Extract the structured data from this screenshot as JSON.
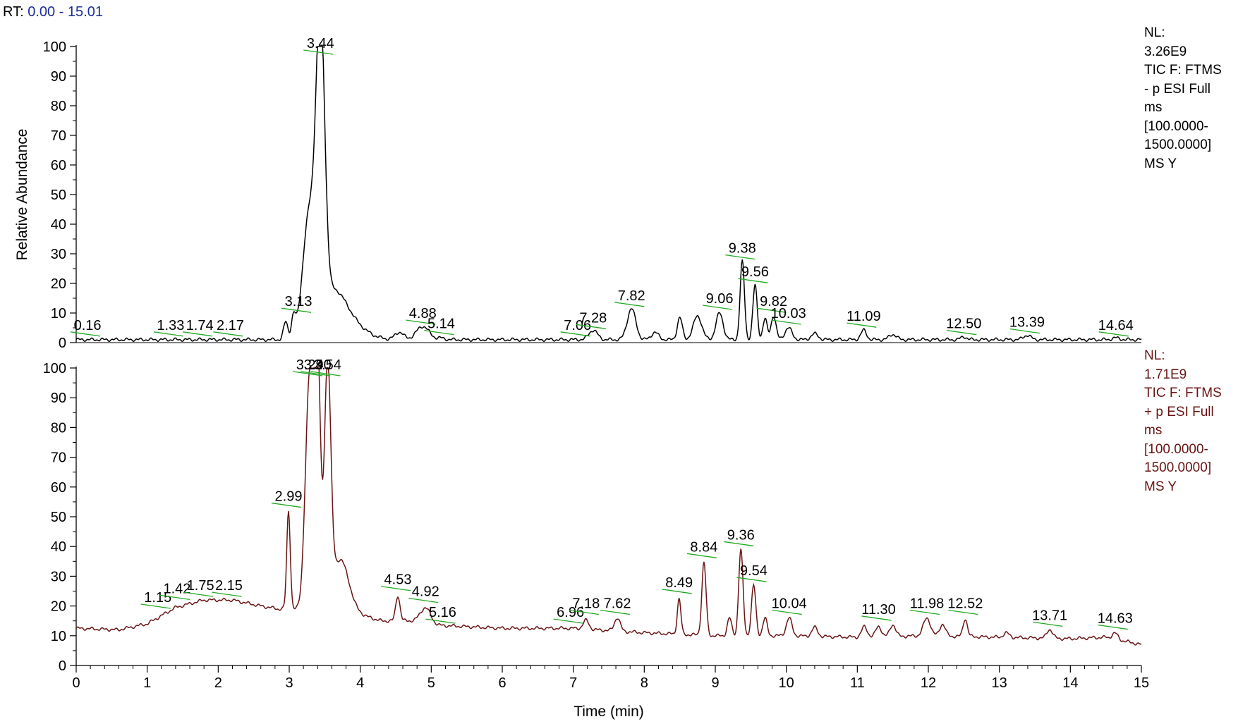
{
  "header": {
    "rt_label": "RT:",
    "rt_range": "0.00 - 15.01",
    "rt_color": "#1a2d9a"
  },
  "colors": {
    "neg_trace": "#000000",
    "pos_trace": "#6a1414",
    "pos_info_text": "#6a1414",
    "peak_marker": "#22aa22",
    "axis": "#000000"
  },
  "panels": [
    {
      "nl_label": "NL:",
      "nl_value": "3.26E9",
      "scan_filter": [
        "TIC F: FTMS",
        "- p ESI Full",
        "ms",
        "[100.0000-",
        "1500.0000]",
        "MS Y"
      ]
    },
    {
      "nl_label": "NL:",
      "nl_value": "1.71E9",
      "scan_filter": [
        "TIC F: FTMS",
        "+ p ESI Full",
        "ms",
        "[100.0000-",
        "1500.0000]",
        "MS Y"
      ]
    }
  ],
  "chart_data": [
    {
      "type": "line",
      "title": "",
      "xlabel": "Time (min)",
      "ylabel": "Relative Abundance",
      "xlim": [
        0,
        15
      ],
      "ylim": [
        0,
        100
      ],
      "x_ticks": [
        0,
        1,
        2,
        3,
        4,
        5,
        6,
        7,
        8,
        9,
        10,
        11,
        12,
        13,
        14,
        15
      ],
      "y_ticks": [
        0,
        10,
        20,
        30,
        40,
        50,
        60,
        70,
        80,
        90,
        100
      ],
      "grid": false,
      "peak_labels": [
        {
          "rt": 0.16,
          "label": "0.16",
          "y": 1
        },
        {
          "rt": 1.33,
          "label": "1.33",
          "y": 1
        },
        {
          "rt": 1.74,
          "label": "1.74",
          "y": 1
        },
        {
          "rt": 2.17,
          "label": "2.17",
          "y": 1
        },
        {
          "rt": 3.13,
          "label": "3.13",
          "y": 9
        },
        {
          "rt": 3.44,
          "label": "3.44",
          "y": 100
        },
        {
          "rt": 4.88,
          "label": "4.88",
          "y": 5
        },
        {
          "rt": 5.14,
          "label": "5.14",
          "y": 1.5
        },
        {
          "rt": 7.06,
          "label": "7.06",
          "y": 1
        },
        {
          "rt": 7.28,
          "label": "7.28",
          "y": 3.5
        },
        {
          "rt": 7.82,
          "label": "7.82",
          "y": 11
        },
        {
          "rt": 9.06,
          "label": "9.06",
          "y": 10
        },
        {
          "rt": 9.38,
          "label": "9.38",
          "y": 27
        },
        {
          "rt": 9.56,
          "label": "9.56",
          "y": 19
        },
        {
          "rt": 9.82,
          "label": "9.82",
          "y": 9
        },
        {
          "rt": 10.03,
          "label": "10.03",
          "y": 5
        },
        {
          "rt": 11.09,
          "label": "11.09",
          "y": 4
        },
        {
          "rt": 12.5,
          "label": "12.50",
          "y": 1.5
        },
        {
          "rt": 13.39,
          "label": "13.39",
          "y": 2
        },
        {
          "rt": 14.64,
          "label": "14.64",
          "y": 1
        }
      ],
      "series": [
        {
          "baseline": 1.0,
          "peaks": [
            [
              2.95,
              6,
              0.03
            ],
            [
              3.06,
              7,
              0.03
            ],
            [
              3.28,
              40,
              0.09
            ],
            [
              3.44,
              98,
              0.06
            ],
            [
              3.6,
              14,
              0.18
            ],
            [
              3.85,
              5,
              0.22
            ],
            [
              4.55,
              2.5,
              0.06
            ],
            [
              4.88,
              4.5,
              0.09
            ],
            [
              5.14,
              0.5,
              0.05
            ],
            [
              7.28,
              3.2,
              0.06
            ],
            [
              7.82,
              10.5,
              0.06
            ],
            [
              8.15,
              2.5,
              0.05
            ],
            [
              8.5,
              7.5,
              0.035
            ],
            [
              8.75,
              8,
              0.06
            ],
            [
              9.06,
              9,
              0.05
            ],
            [
              9.38,
              26.5,
              0.03
            ],
            [
              9.56,
              18.5,
              0.03
            ],
            [
              9.7,
              7,
              0.03
            ],
            [
              9.82,
              8,
              0.035
            ],
            [
              10.03,
              4,
              0.05
            ],
            [
              10.4,
              2,
              0.05
            ],
            [
              11.09,
              3.2,
              0.04
            ],
            [
              11.5,
              1.8,
              0.05
            ],
            [
              12.5,
              1.0,
              0.04
            ],
            [
              13.39,
              1.5,
              0.05
            ],
            [
              14.64,
              0.6,
              0.05
            ]
          ]
        }
      ]
    },
    {
      "type": "line",
      "title": "",
      "xlabel": "Time (min)",
      "ylabel": "",
      "xlim": [
        0,
        15
      ],
      "ylim": [
        0,
        100
      ],
      "x_ticks": [
        0,
        1,
        2,
        3,
        4,
        5,
        6,
        7,
        8,
        9,
        10,
        11,
        12,
        13,
        14,
        15
      ],
      "y_ticks": [
        0,
        10,
        20,
        30,
        40,
        50,
        60,
        70,
        80,
        90,
        100
      ],
      "grid": false,
      "peak_labels": [
        {
          "rt": 1.15,
          "label": "1.15",
          "y": 18
        },
        {
          "rt": 1.42,
          "label": "1.42",
          "y": 21
        },
        {
          "rt": 1.75,
          "label": "1.75",
          "y": 22
        },
        {
          "rt": 2.15,
          "label": "2.15",
          "y": 22
        },
        {
          "rt": 2.99,
          "label": "2.99",
          "y": 52
        },
        {
          "rt": 3.29,
          "label": "3.29",
          "y": 100
        },
        {
          "rt": 3.4,
          "label": "3.40",
          "y": 100
        },
        {
          "rt": 3.54,
          "label": "3.54",
          "y": 100
        },
        {
          "rt": 4.53,
          "label": "4.53",
          "y": 24
        },
        {
          "rt": 4.92,
          "label": "4.92",
          "y": 20
        },
        {
          "rt": 5.16,
          "label": "5.16",
          "y": 13
        },
        {
          "rt": 6.96,
          "label": "6.96",
          "y": 13
        },
        {
          "rt": 7.18,
          "label": "7.18",
          "y": 16
        },
        {
          "rt": 7.62,
          "label": "7.62",
          "y": 16
        },
        {
          "rt": 8.49,
          "label": "8.49",
          "y": 23
        },
        {
          "rt": 8.84,
          "label": "8.84",
          "y": 35
        },
        {
          "rt": 9.36,
          "label": "9.36",
          "y": 39
        },
        {
          "rt": 9.54,
          "label": "9.54",
          "y": 27
        },
        {
          "rt": 10.04,
          "label": "10.04",
          "y": 16
        },
        {
          "rt": 11.3,
          "label": "11.30",
          "y": 14
        },
        {
          "rt": 11.98,
          "label": "11.98",
          "y": 16
        },
        {
          "rt": 12.52,
          "label": "12.52",
          "y": 16
        },
        {
          "rt": 13.71,
          "label": "13.71",
          "y": 12
        },
        {
          "rt": 14.63,
          "label": "14.63",
          "y": 11
        }
      ],
      "series": [
        {
          "baseline_points": [
            [
              0,
              12.5
            ],
            [
              0.6,
              12
            ],
            [
              1.0,
              14
            ],
            [
              1.4,
              19.5
            ],
            [
              1.8,
              22
            ],
            [
              2.2,
              22
            ],
            [
              2.6,
              20
            ],
            [
              2.85,
              19
            ],
            [
              3.0,
              19
            ],
            [
              4.0,
              17
            ],
            [
              4.3,
              15
            ],
            [
              4.8,
              15
            ],
            [
              5.1,
              13.5
            ],
            [
              6.0,
              12.5
            ],
            [
              7.0,
              12.5
            ],
            [
              8.0,
              11
            ],
            [
              9.0,
              10
            ],
            [
              10.0,
              10
            ],
            [
              11.0,
              9.5
            ],
            [
              12.0,
              10
            ],
            [
              13.0,
              9.5
            ],
            [
              14.0,
              9
            ],
            [
              14.5,
              9.5
            ],
            [
              15.0,
              7
            ]
          ],
          "peaks": [
            [
              2.99,
              33,
              0.025
            ],
            [
              3.29,
              80,
              0.06
            ],
            [
              3.4,
              80,
              0.04
            ],
            [
              3.54,
              80,
              0.045
            ],
            [
              3.72,
              18,
              0.12
            ],
            [
              4.53,
              8.5,
              0.03
            ],
            [
              4.92,
              5,
              0.07
            ],
            [
              7.18,
              3,
              0.04
            ],
            [
              7.62,
              4.5,
              0.04
            ],
            [
              8.49,
              12,
              0.025
            ],
            [
              8.84,
              24.5,
              0.03
            ],
            [
              9.2,
              6,
              0.03
            ],
            [
              9.36,
              29,
              0.03
            ],
            [
              9.54,
              17,
              0.03
            ],
            [
              9.7,
              6,
              0.03
            ],
            [
              10.04,
              6,
              0.04
            ],
            [
              10.4,
              3,
              0.04
            ],
            [
              11.1,
              3.5,
              0.04
            ],
            [
              11.3,
              3.5,
              0.04
            ],
            [
              11.5,
              4,
              0.04
            ],
            [
              11.98,
              6,
              0.05
            ],
            [
              12.2,
              4,
              0.04
            ],
            [
              12.52,
              6,
              0.03
            ],
            [
              13.1,
              1.5,
              0.04
            ],
            [
              13.71,
              3,
              0.04
            ],
            [
              14.63,
              2,
              0.04
            ]
          ]
        }
      ]
    }
  ]
}
